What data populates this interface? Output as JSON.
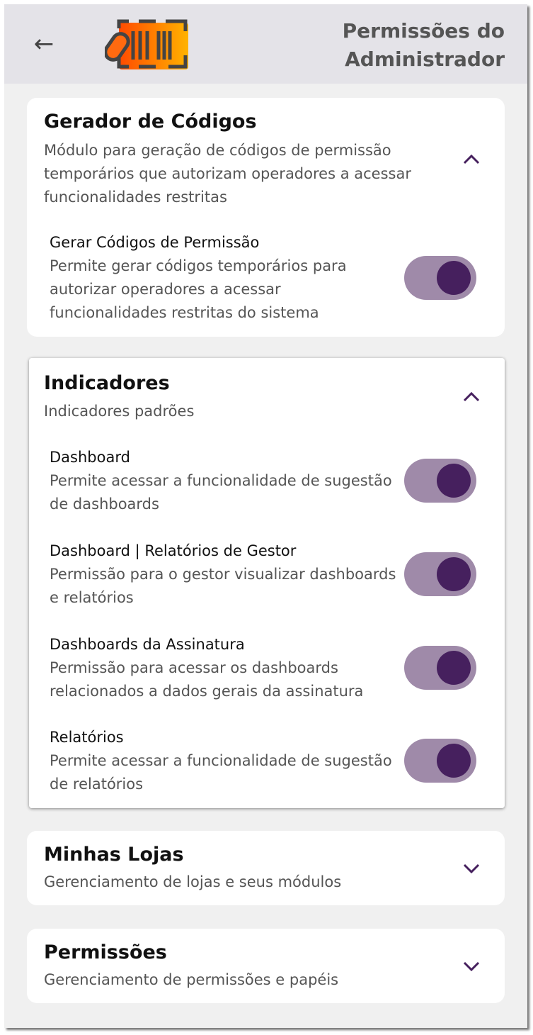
{
  "header": {
    "title_line1": "Permissões do",
    "title_line2": "Administrador",
    "back_icon": "arrow-left-icon",
    "logo": "barcode-pill-logo"
  },
  "colors": {
    "accent": "#46205e",
    "toggle_track": "#9f8aa9",
    "header_bg": "#e4e3e8",
    "background": "#f0f0f0"
  },
  "sections": [
    {
      "title": "Gerador de Códigos",
      "subtitle": "Módulo para geração de códigos de permissão temporários que autorizam operadores a acessar funcionalidades restritas",
      "expanded": true,
      "items": [
        {
          "title": "Gerar Códigos de Permissão",
          "description": "Permite gerar códigos temporários para autorizar operadores a acessar funcionalidades restritas do sistema",
          "enabled": true
        }
      ]
    },
    {
      "title": "Indicadores",
      "subtitle": "Indicadores padrões",
      "expanded": true,
      "items": [
        {
          "title": "Dashboard",
          "description": "Permite acessar a funcionalidade de sugestão de dashboards",
          "enabled": true
        },
        {
          "title": "Dashboard | Relatórios de Gestor",
          "description": "Permissão para o gestor visualizar dashboards e relatórios",
          "enabled": true
        },
        {
          "title": "Dashboards da Assinatura",
          "description": "Permissão para acessar os dashboards relacionados a dados gerais da assinatura",
          "enabled": true
        },
        {
          "title": "Relatórios",
          "description": "Permite acessar a funcionalidade de sugestão de relatórios",
          "enabled": true
        }
      ]
    },
    {
      "title": "Minhas Lojas",
      "subtitle": "Gerenciamento de lojas e seus módulos",
      "expanded": false
    },
    {
      "title": "Permissões",
      "subtitle": "Gerenciamento de permissões e papéis",
      "expanded": false
    }
  ]
}
